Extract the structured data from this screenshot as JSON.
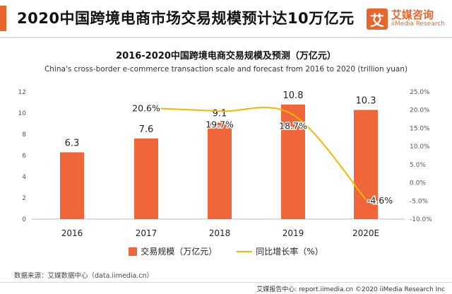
{
  "header": {
    "title": "2020中国跨境电商市场交易规模预计达10万亿元",
    "logo_mark": "艾",
    "logo_cn": "艾媒咨询",
    "logo_en": "iiMedia Research"
  },
  "colors": {
    "accent": "#e8662b",
    "bar": "#f0663a",
    "line": "#f5b800"
  },
  "legend": {
    "bar_label": "交易规模（万亿元）",
    "line_label": "同比增长率（%）"
  },
  "source": "数据来源：艾媒数据中心（data.iimedia.cn）",
  "footer": "艾媒报告中心: report.iimedia.cn ©2020  iiMedia Research Inc",
  "chart_data": {
    "type": "bar",
    "title": "2016-2020中国跨境电商交易规模及预测（万亿元）",
    "subtitle": "China's cross-border e-commerce transaction scale and forecast from 2016 to 2020 (trillion yuan)",
    "categories": [
      "2016",
      "2017",
      "2018",
      "2019",
      "2020E"
    ],
    "series": [
      {
        "name": "交易规模（万亿元）",
        "type": "bar",
        "axis": "left",
        "values": [
          6.3,
          7.6,
          9.1,
          10.8,
          10.3
        ],
        "labels": [
          "6.3",
          "7.6",
          "9.1",
          "10.8",
          "10.3"
        ]
      },
      {
        "name": "同比增长率（%）",
        "type": "line",
        "axis": "right",
        "values": [
          null,
          20.6,
          19.7,
          18.7,
          -4.6
        ],
        "labels": [
          "",
          "20.6%",
          "19.7%",
          "18.7%",
          "-4.6%"
        ]
      }
    ],
    "y_left": {
      "min": 0,
      "max": 12,
      "ticks": [
        "0",
        "2",
        "4",
        "6",
        "8",
        "10",
        "12"
      ]
    },
    "y_right": {
      "min": -10,
      "max": 25,
      "ticks": [
        "-10.0%",
        "-5.0%",
        "0.0%",
        "5.0%",
        "10.0%",
        "15.0%",
        "20.0%",
        "25.0%"
      ]
    },
    "grid": false,
    "legend_position": "bottom"
  }
}
